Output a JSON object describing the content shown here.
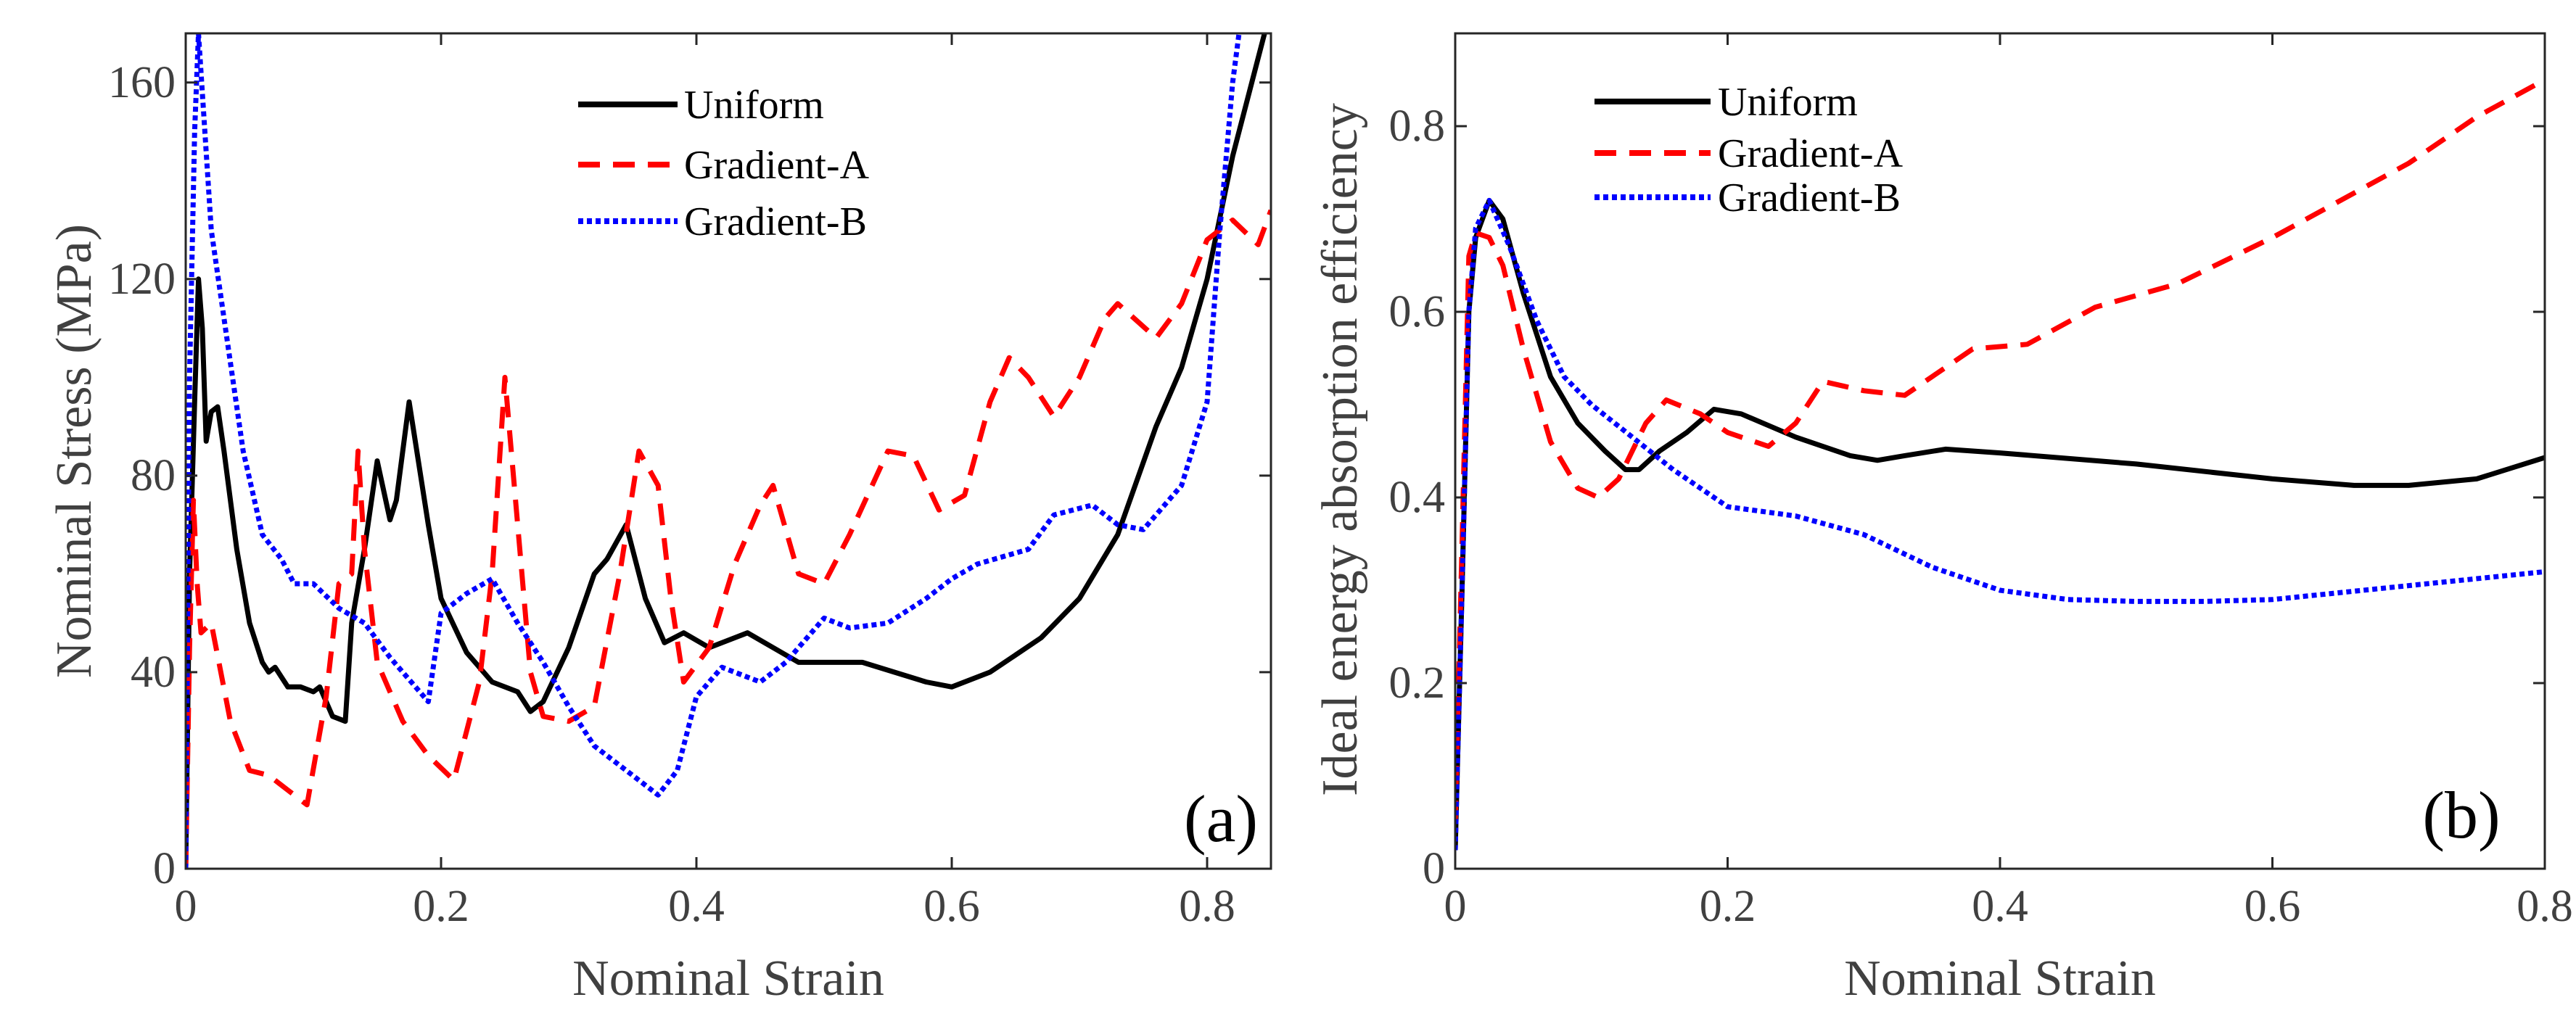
{
  "chart_data": [
    {
      "type": "line",
      "panel_label": "(a)",
      "xlabel": "Nominal Strain",
      "ylabel": "Nominal Stress (MPa)",
      "xlim": [
        0,
        0.85
      ],
      "ylim": [
        0,
        170
      ],
      "xticks": [
        0,
        0.2,
        0.4,
        0.6,
        0.8
      ],
      "xtick_labels": [
        "0",
        "0.2",
        "0.4",
        "0.6",
        "0.8"
      ],
      "yticks": [
        0,
        40,
        80,
        120,
        160
      ],
      "ytick_labels": [
        "0",
        "40",
        "80",
        "120",
        "160"
      ],
      "grid": false,
      "legend_position": "top-center",
      "series": [
        {
          "name": "Uniform",
          "color": "#000000",
          "style": "solid",
          "x": [
            0,
            0.003,
            0.007,
            0.01,
            0.013,
            0.016,
            0.02,
            0.025,
            0.03,
            0.04,
            0.05,
            0.06,
            0.065,
            0.07,
            0.08,
            0.09,
            0.1,
            0.105,
            0.11,
            0.115,
            0.125,
            0.13,
            0.14,
            0.15,
            0.16,
            0.165,
            0.175,
            0.19,
            0.2,
            0.22,
            0.24,
            0.26,
            0.27,
            0.28,
            0.3,
            0.32,
            0.33,
            0.345,
            0.36,
            0.375,
            0.39,
            0.41,
            0.44,
            0.48,
            0.5,
            0.53,
            0.58,
            0.6,
            0.63,
            0.67,
            0.7,
            0.73,
            0.76,
            0.78,
            0.8,
            0.82,
            0.845
          ],
          "y": [
            0,
            60,
            95,
            120,
            110,
            87,
            93,
            94,
            85,
            65,
            50,
            42,
            40,
            41,
            37,
            37,
            36,
            37,
            34,
            31,
            30,
            50,
            65,
            83,
            71,
            75,
            95,
            70,
            55,
            44,
            38,
            36,
            32,
            34,
            45,
            60,
            63,
            70,
            55,
            46,
            48,
            45,
            48,
            42,
            42,
            42,
            38,
            37,
            40,
            47,
            55,
            68,
            90,
            102,
            120,
            145,
            170
          ]
        },
        {
          "name": "Gradient-A",
          "color": "#ff0000",
          "style": "dashed",
          "x": [
            0,
            0.003,
            0.006,
            0.009,
            0.012,
            0.02,
            0.035,
            0.05,
            0.065,
            0.08,
            0.095,
            0.11,
            0.12,
            0.13,
            0.135,
            0.14,
            0.15,
            0.17,
            0.19,
            0.21,
            0.23,
            0.24,
            0.25,
            0.26,
            0.27,
            0.28,
            0.3,
            0.32,
            0.34,
            0.355,
            0.37,
            0.38,
            0.39,
            0.41,
            0.43,
            0.45,
            0.46,
            0.48,
            0.5,
            0.52,
            0.55,
            0.57,
            0.59,
            0.61,
            0.63,
            0.645,
            0.66,
            0.68,
            0.7,
            0.72,
            0.73,
            0.76,
            0.78,
            0.8,
            0.82,
            0.84,
            0.85
          ],
          "y": [
            0,
            45,
            75,
            58,
            48,
            50,
            30,
            20,
            19,
            16,
            13,
            35,
            58,
            60,
            85,
            65,
            42,
            30,
            23,
            18,
            38,
            60,
            100,
            70,
            40,
            31,
            30,
            33,
            60,
            85,
            78,
            55,
            38,
            45,
            62,
            74,
            78,
            60,
            58,
            68,
            85,
            84,
            73,
            76,
            95,
            104,
            100,
            92,
            100,
            112,
            115,
            108,
            115,
            128,
            132,
            127,
            134
          ]
        },
        {
          "name": "Gradient-B",
          "color": "#0000ff",
          "style": "dotted",
          "x": [
            0,
            0.003,
            0.007,
            0.01,
            0.015,
            0.02,
            0.03,
            0.045,
            0.06,
            0.075,
            0.085,
            0.1,
            0.12,
            0.14,
            0.16,
            0.18,
            0.19,
            0.2,
            0.22,
            0.24,
            0.26,
            0.28,
            0.3,
            0.32,
            0.35,
            0.37,
            0.385,
            0.4,
            0.42,
            0.45,
            0.47,
            0.5,
            0.52,
            0.55,
            0.58,
            0.6,
            0.62,
            0.66,
            0.68,
            0.71,
            0.73,
            0.75,
            0.78,
            0.8,
            0.81,
            0.82,
            0.825
          ],
          "y": [
            0,
            100,
            150,
            170,
            150,
            130,
            112,
            85,
            68,
            63,
            58,
            58,
            53,
            50,
            43,
            37,
            34,
            52,
            56,
            59,
            50,
            42,
            33,
            25,
            19,
            15,
            20,
            35,
            41,
            38,
            42,
            51,
            49,
            50,
            55,
            59,
            62,
            65,
            72,
            74,
            70,
            69,
            78,
            95,
            130,
            160,
            170
          ]
        }
      ]
    },
    {
      "type": "line",
      "panel_label": "(b)",
      "xlabel": "Nominal Strain",
      "ylabel": "Ideal energy absorption efficiency",
      "xlim": [
        0,
        0.8
      ],
      "ylim": [
        0,
        0.9
      ],
      "xticks": [
        0,
        0.2,
        0.4,
        0.6,
        0.8
      ],
      "xtick_labels": [
        "0",
        "0.2",
        "0.4",
        "0.6",
        "0.8"
      ],
      "yticks": [
        0,
        0.2,
        0.4,
        0.6,
        0.8
      ],
      "ytick_labels": [
        "0",
        "0.2",
        "0.4",
        "0.6",
        "0.8"
      ],
      "grid": false,
      "legend_position": "top-center",
      "series": [
        {
          "name": "Uniform",
          "color": "#000000",
          "style": "solid",
          "x": [
            0,
            0.005,
            0.01,
            0.015,
            0.025,
            0.035,
            0.05,
            0.07,
            0.09,
            0.11,
            0.125,
            0.135,
            0.15,
            0.17,
            0.19,
            0.21,
            0.25,
            0.29,
            0.31,
            0.33,
            0.36,
            0.4,
            0.5,
            0.6,
            0.66,
            0.7,
            0.75,
            0.8
          ],
          "y": [
            0.02,
            0.3,
            0.6,
            0.68,
            0.72,
            0.7,
            0.62,
            0.53,
            0.48,
            0.45,
            0.43,
            0.43,
            0.45,
            0.47,
            0.495,
            0.49,
            0.465,
            0.445,
            0.44,
            0.445,
            0.452,
            0.448,
            0.436,
            0.42,
            0.413,
            0.413,
            0.42,
            0.443
          ]
        },
        {
          "name": "Gradient-A",
          "color": "#ff0000",
          "style": "dashed",
          "x": [
            0,
            0.005,
            0.01,
            0.015,
            0.025,
            0.035,
            0.05,
            0.07,
            0.09,
            0.105,
            0.12,
            0.14,
            0.155,
            0.18,
            0.2,
            0.23,
            0.25,
            0.27,
            0.3,
            0.33,
            0.35,
            0.38,
            0.42,
            0.47,
            0.53,
            0.6,
            0.65,
            0.7,
            0.75,
            0.8
          ],
          "y": [
            0.05,
            0.35,
            0.66,
            0.685,
            0.68,
            0.65,
            0.56,
            0.46,
            0.41,
            0.4,
            0.42,
            0.48,
            0.505,
            0.49,
            0.47,
            0.455,
            0.48,
            0.525,
            0.515,
            0.51,
            0.53,
            0.56,
            0.565,
            0.605,
            0.63,
            0.68,
            0.72,
            0.76,
            0.81,
            0.85
          ]
        },
        {
          "name": "Gradient-B",
          "color": "#0000ff",
          "style": "dotted",
          "x": [
            0,
            0.005,
            0.01,
            0.015,
            0.025,
            0.04,
            0.06,
            0.08,
            0.1,
            0.13,
            0.16,
            0.2,
            0.25,
            0.3,
            0.35,
            0.4,
            0.45,
            0.5,
            0.55,
            0.6,
            0.7,
            0.8
          ],
          "y": [
            0.02,
            0.3,
            0.6,
            0.69,
            0.72,
            0.67,
            0.59,
            0.53,
            0.5,
            0.465,
            0.43,
            0.39,
            0.38,
            0.36,
            0.325,
            0.3,
            0.29,
            0.288,
            0.288,
            0.29,
            0.305,
            0.32
          ]
        }
      ]
    }
  ]
}
